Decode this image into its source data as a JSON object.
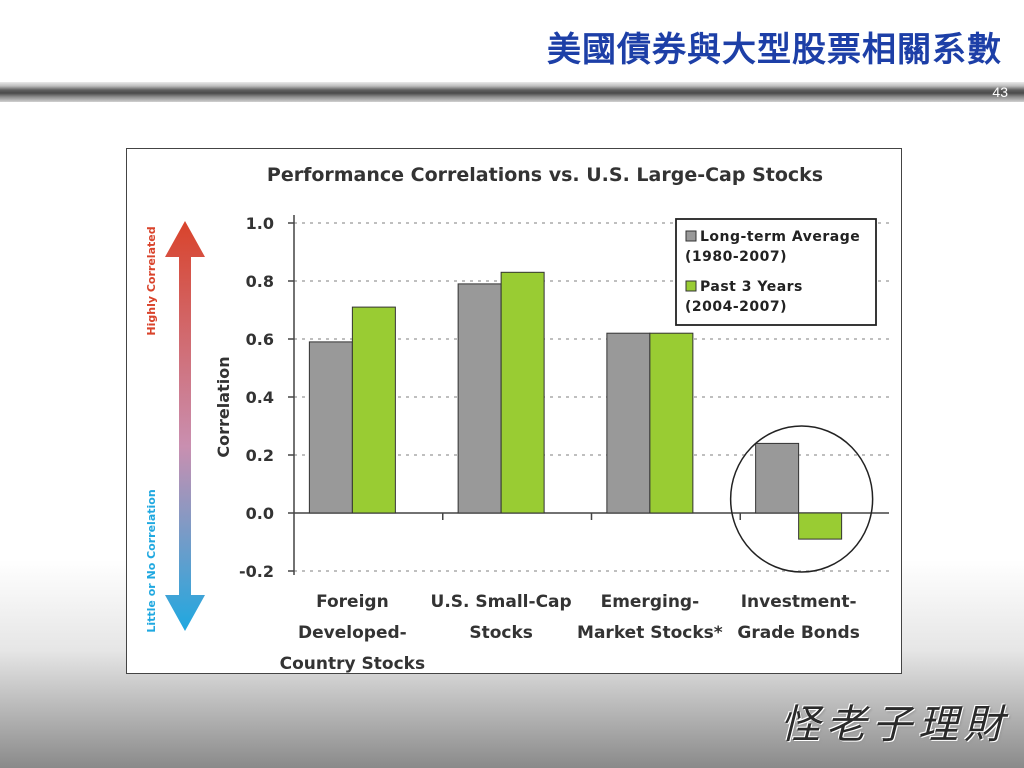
{
  "slide": {
    "title": "美國債券與大型股票相關系數",
    "page_number": "43",
    "signature": "怪老子理財"
  },
  "arrow": {
    "top_label": "Highly Correlated",
    "bottom_label": "Little or No Correlation",
    "top_color": "#d9432b",
    "bottom_color": "#1fa8e0"
  },
  "colors": {
    "long_term": "#999999",
    "past_3": "#99cc33"
  },
  "chart_data": {
    "type": "bar",
    "title": "Performance Correlations vs. U.S. Large-Cap Stocks",
    "ylabel": "Correlation",
    "xlabel": "",
    "ylim": [
      -0.2,
      1.0
    ],
    "yticks": [
      "1.0",
      "0.8",
      "0.6",
      "0.4",
      "0.2",
      "0.0",
      "-0.2"
    ],
    "ytick_values": [
      1.0,
      0.8,
      0.6,
      0.4,
      0.2,
      0.0,
      -0.2
    ],
    "grid": true,
    "legend_position": "top-right",
    "categories": [
      [
        "Foreign",
        "Developed-",
        "Country Stocks"
      ],
      [
        "U.S. Small-Cap",
        "Stocks"
      ],
      [
        "Emerging-",
        "Market Stocks*"
      ],
      [
        "Investment-",
        "Grade Bonds"
      ]
    ],
    "series": [
      {
        "name": [
          "Long-term Average",
          "(1980-2007)"
        ],
        "values": [
          0.59,
          0.79,
          0.62,
          0.24
        ]
      },
      {
        "name": [
          "Past 3 Years",
          "(2004-2007)"
        ],
        "values": [
          0.71,
          0.83,
          0.62,
          -0.09
        ]
      }
    ],
    "highlighted_category": 3
  }
}
